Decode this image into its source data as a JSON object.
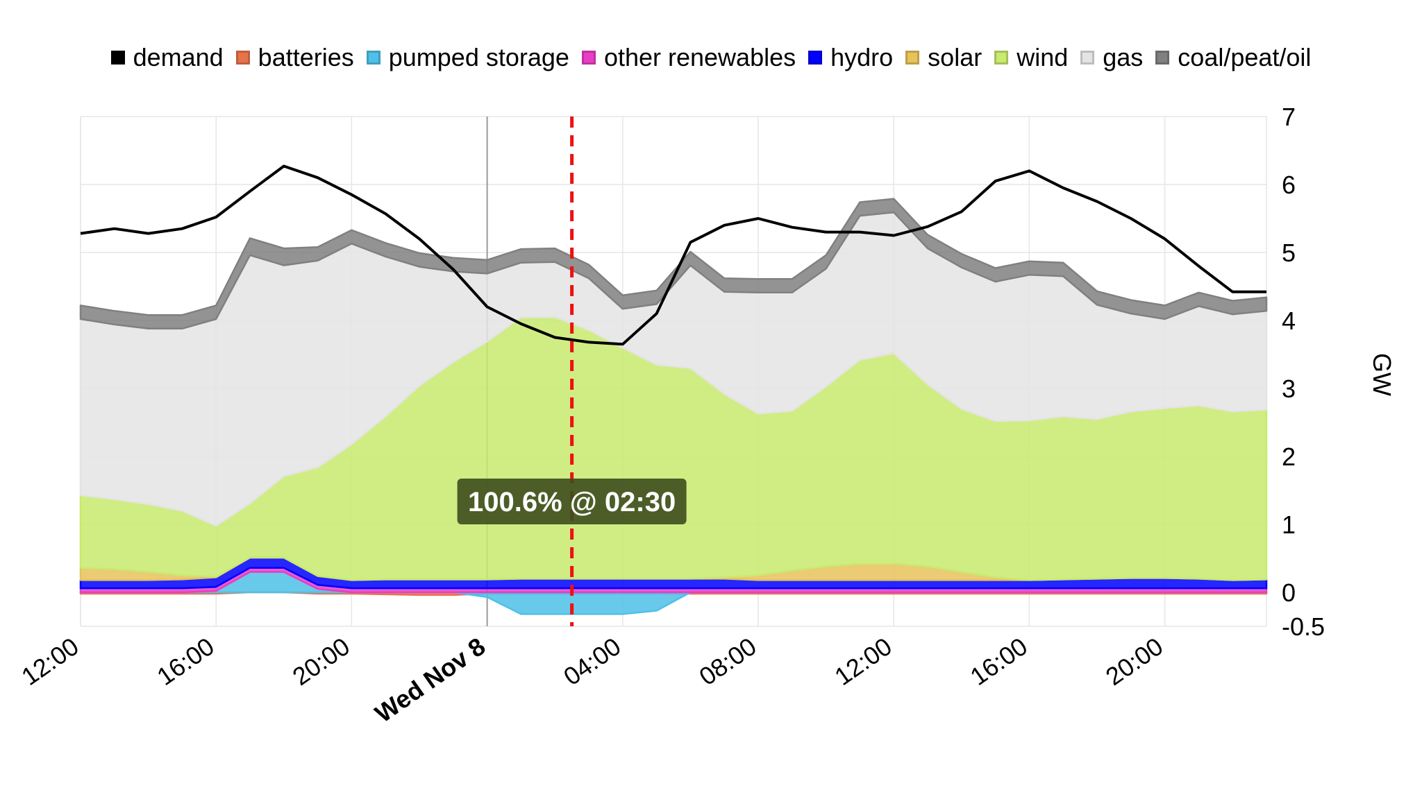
{
  "chart_data": {
    "type": "area",
    "stacked": true,
    "unit_label": "GW",
    "x_tick_labels": [
      "12:00",
      "16:00",
      "20:00",
      "Wed Nov 8",
      "04:00",
      "08:00",
      "12:00",
      "16:00",
      "20:00"
    ],
    "x_tick_hours": [
      0,
      4,
      8,
      12,
      16,
      20,
      24,
      28,
      32
    ],
    "x_range_hours": [
      0,
      35
    ],
    "y_ticks": [
      -0.5,
      0,
      1,
      2,
      3,
      4,
      5,
      6,
      7
    ],
    "ylim": [
      -0.5,
      7
    ],
    "legend_position": "top",
    "grid": true,
    "x_hours": [
      0,
      1,
      2,
      3,
      4,
      5,
      6,
      7,
      8,
      9,
      10,
      11,
      12,
      13,
      14,
      15,
      16,
      17,
      18,
      19,
      20,
      21,
      22,
      23,
      24,
      25,
      26,
      27,
      28,
      29,
      30,
      31,
      32,
      33,
      34,
      35
    ],
    "series": [
      {
        "name": "batteries",
        "color": "#e8734a",
        "values": [
          -0.02,
          -0.02,
          -0.02,
          -0.02,
          -0.02,
          0.0,
          0.0,
          -0.02,
          -0.02,
          -0.03,
          -0.04,
          -0.04,
          -0.02,
          -0.02,
          -0.02,
          -0.02,
          -0.02,
          -0.02,
          -0.02,
          -0.02,
          -0.02,
          -0.02,
          -0.02,
          -0.02,
          -0.02,
          -0.02,
          -0.02,
          -0.02,
          -0.02,
          -0.02,
          -0.02,
          -0.02,
          -0.02,
          -0.02,
          -0.02,
          -0.02
        ]
      },
      {
        "name": "pumped storage",
        "color": "#4fc0e8",
        "values": [
          0.0,
          0.0,
          0.0,
          0.0,
          0.02,
          0.3,
          0.3,
          0.05,
          0.0,
          0.0,
          0.0,
          0.0,
          -0.05,
          -0.3,
          -0.3,
          -0.3,
          -0.3,
          -0.25,
          0.0,
          0.0,
          0.0,
          0.0,
          0.0,
          0.0,
          0.0,
          0.0,
          0.0,
          0.0,
          0.0,
          0.0,
          0.0,
          0.0,
          0.0,
          0.0,
          0.0,
          0.0
        ]
      },
      {
        "name": "other renewables",
        "color": "#e83ec4",
        "values": [
          0.06,
          0.06,
          0.06,
          0.06,
          0.06,
          0.06,
          0.06,
          0.06,
          0.06,
          0.06,
          0.06,
          0.06,
          0.06,
          0.06,
          0.06,
          0.06,
          0.06,
          0.06,
          0.06,
          0.06,
          0.06,
          0.06,
          0.06,
          0.06,
          0.06,
          0.06,
          0.06,
          0.06,
          0.06,
          0.06,
          0.06,
          0.06,
          0.06,
          0.06,
          0.06,
          0.06
        ]
      },
      {
        "name": "hydro",
        "color": "#0000ff",
        "values": [
          0.12,
          0.12,
          0.12,
          0.13,
          0.14,
          0.15,
          0.15,
          0.13,
          0.12,
          0.13,
          0.13,
          0.13,
          0.13,
          0.14,
          0.14,
          0.14,
          0.14,
          0.14,
          0.14,
          0.14,
          0.12,
          0.12,
          0.12,
          0.12,
          0.12,
          0.12,
          0.12,
          0.12,
          0.12,
          0.13,
          0.14,
          0.15,
          0.15,
          0.14,
          0.12,
          0.13
        ]
      },
      {
        "name": "solar",
        "color": "#e8c25a",
        "values": [
          0.18,
          0.16,
          0.12,
          0.06,
          0.01,
          0.0,
          0.0,
          0.0,
          0.0,
          0.0,
          0.0,
          0.0,
          0.0,
          0.0,
          0.0,
          0.0,
          0.0,
          0.0,
          0.0,
          0.02,
          0.07,
          0.14,
          0.2,
          0.24,
          0.24,
          0.2,
          0.12,
          0.04,
          0.0,
          0.0,
          0.0,
          0.0,
          0.0,
          0.0,
          0.0,
          0.0
        ]
      },
      {
        "name": "wind",
        "color": "#c8ea6e",
        "values": [
          1.07,
          1.03,
          1.0,
          0.95,
          0.75,
          0.8,
          1.2,
          1.6,
          2.0,
          2.4,
          2.85,
          3.2,
          3.5,
          3.85,
          3.85,
          3.66,
          3.4,
          3.15,
          3.1,
          2.7,
          2.38,
          2.35,
          2.65,
          3.0,
          3.1,
          2.68,
          2.4,
          2.3,
          2.35,
          2.4,
          2.35,
          2.45,
          2.5,
          2.55,
          2.48,
          2.5
        ]
      },
      {
        "name": "gas",
        "color": "#e4e4e4",
        "values": [
          2.59,
          2.57,
          2.58,
          2.68,
          3.04,
          3.65,
          3.1,
          3.04,
          2.95,
          2.35,
          1.75,
          1.33,
          1.0,
          0.8,
          0.81,
          0.76,
          0.57,
          0.89,
          1.51,
          1.5,
          1.78,
          1.74,
          1.73,
          2.12,
          2.07,
          2.0,
          2.08,
          2.05,
          2.14,
          2.06,
          1.68,
          1.44,
          1.31,
          1.46,
          1.43,
          1.45
        ]
      },
      {
        "name": "coal/peat/oil",
        "color": "#808080",
        "values": [
          0.2,
          0.2,
          0.2,
          0.2,
          0.2,
          0.25,
          0.25,
          0.2,
          0.2,
          0.2,
          0.2,
          0.2,
          0.2,
          0.2,
          0.2,
          0.2,
          0.2,
          0.2,
          0.2,
          0.2,
          0.2,
          0.2,
          0.2,
          0.2,
          0.2,
          0.2,
          0.2,
          0.2,
          0.2,
          0.2,
          0.2,
          0.2,
          0.2,
          0.2,
          0.2,
          0.2
        ]
      }
    ],
    "demand": {
      "name": "demand",
      "color": "#000000",
      "values": [
        5.28,
        5.35,
        5.28,
        5.35,
        5.52,
        5.9,
        6.27,
        6.1,
        5.85,
        5.57,
        5.2,
        4.75,
        4.2,
        3.95,
        3.75,
        3.68,
        3.65,
        4.1,
        5.15,
        5.4,
        5.5,
        5.37,
        5.3,
        5.3,
        5.25,
        5.38,
        5.6,
        6.05,
        6.2,
        5.95,
        5.75,
        5.5,
        5.2,
        4.8,
        4.42,
        4.42
      ]
    },
    "marker": {
      "hour": 14.5,
      "color": "#ee1111",
      "label": "100.6% @ 02:30"
    },
    "legend_order": [
      "demand",
      "batteries",
      "pumped storage",
      "other renewables",
      "hydro",
      "solar",
      "wind",
      "gas",
      "coal/peat/oil"
    ]
  }
}
